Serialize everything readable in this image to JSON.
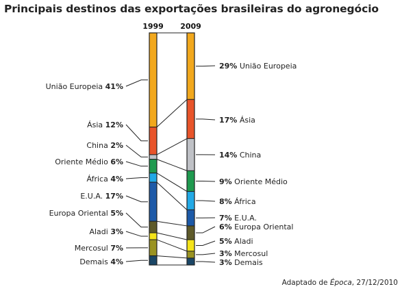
{
  "title": "Principais destinos das exportações brasileiras do agronegócio",
  "source": {
    "prefix": "Adaptado de ",
    "publication": "Época",
    "suffix": ", 27/12/2010"
  },
  "chart_data": {
    "type": "stacked-bar",
    "categories": [
      "1999",
      "2009"
    ],
    "series": [
      {
        "name": "União Europeia",
        "values": [
          41,
          29
        ],
        "color": "#f2a81d"
      },
      {
        "name": "Ásia",
        "values": [
          12,
          17
        ],
        "color": "#e8542a"
      },
      {
        "name": "China",
        "values": [
          2,
          14
        ],
        "color": "#bfc1c6"
      },
      {
        "name": "Oriente Médio",
        "values": [
          6,
          9
        ],
        "color": "#1f9a4f"
      },
      {
        "name": "África",
        "values": [
          4,
          8
        ],
        "color": "#22a9e6"
      },
      {
        "name": "E.U.A.",
        "values": [
          17,
          7
        ],
        "color": "#1d5aa8"
      },
      {
        "name": "Europa Oriental",
        "values": [
          5,
          6
        ],
        "color": "#5e5a2a"
      },
      {
        "name": "Aladi",
        "values": [
          3,
          5
        ],
        "color": "#f4e31a"
      },
      {
        "name": "Mercosul",
        "values": [
          7,
          3
        ],
        "color": "#9a9322"
      },
      {
        "name": "Demais",
        "values": [
          4,
          3
        ],
        "color": "#1a4666"
      }
    ],
    "unit": "%"
  }
}
